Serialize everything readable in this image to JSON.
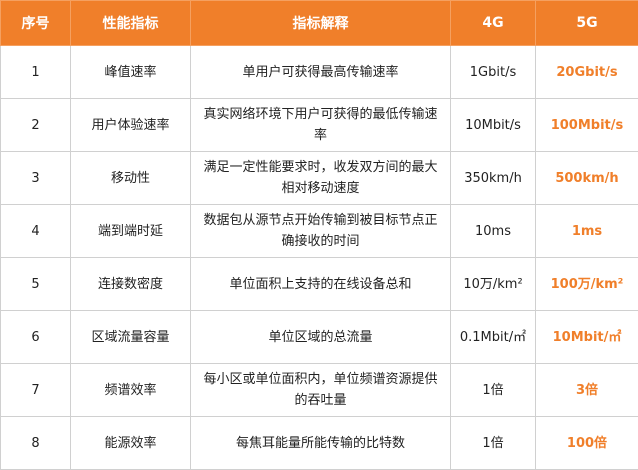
{
  "table": {
    "headers": [
      "序号",
      "性能指标",
      "指标解释",
      "4G",
      "5G"
    ],
    "rows": [
      [
        "1",
        "峰值速率",
        "单用户可获得最高传输速率",
        "1Gbit/s",
        "20Gbit/s"
      ],
      [
        "2",
        "用户体验速率",
        "真实网络环境下用户可获得的最低传输速率",
        "10Mbit/s",
        "100Mbit/s"
      ],
      [
        "3",
        "移动性",
        "满足一定性能要求时，收发双方间的最大相对移动速度",
        "350km/h",
        "500km/h"
      ],
      [
        "4",
        "端到端时延",
        "数据包从源节点开始传输到被目标节点正确接收的时间",
        "10ms",
        "1ms"
      ],
      [
        "5",
        "连接数密度",
        "单位面积上支持的在线设备总和",
        "10万/km²",
        "100万/km²"
      ],
      [
        "6",
        "区域流量容量",
        "单位区域的总流量",
        "0.1Mbit/㎡",
        "10Mbit/㎡"
      ],
      [
        "7",
        "频谱效率",
        "每小区或单位面积内，单位频谱资源提供的吞吐量",
        "1倍",
        "3倍"
      ],
      [
        "8",
        "能源效率",
        "每焦耳能量所能传输的比特数",
        "1倍",
        "100倍"
      ]
    ]
  }
}
